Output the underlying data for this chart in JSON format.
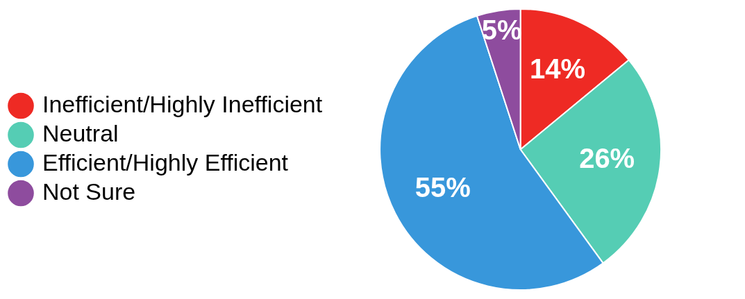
{
  "chart_data": {
    "type": "pie",
    "categories": [
      "Inefficient/Highly Inefficient",
      "Neutral",
      "Efficient/Highly Efficient",
      "Not Sure"
    ],
    "values": [
      14,
      26,
      55,
      5
    ],
    "colors": [
      "#ee2a24",
      "#55cdb4",
      "#3897db",
      "#8e4c9e"
    ],
    "value_labels": [
      "14%",
      "26%",
      "55%",
      "5%"
    ],
    "legend": "left"
  }
}
